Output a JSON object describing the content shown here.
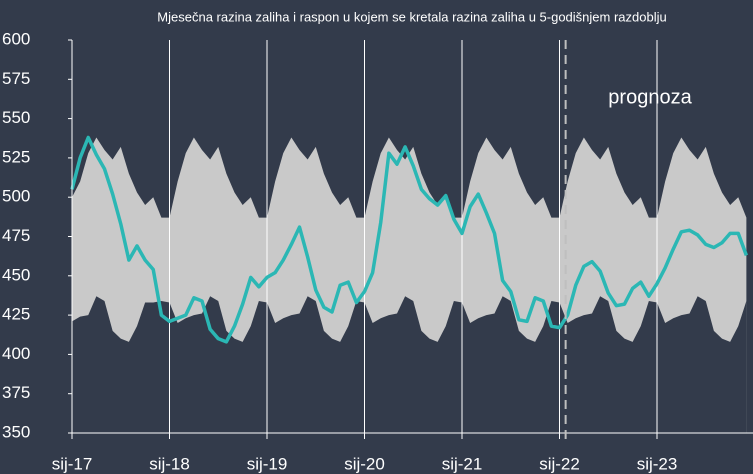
{
  "chart_data": {
    "type": "line_band",
    "title": "Mjesečna razina zaliha i raspon u kojem se kretala  razina zaliha u 5-godišnjem razdoblju",
    "categories": [
      "sij-17",
      null,
      null,
      null,
      null,
      null,
      null,
      null,
      null,
      null,
      null,
      null,
      "sij-18",
      null,
      null,
      null,
      null,
      null,
      null,
      null,
      null,
      null,
      null,
      null,
      "sij-19",
      null,
      null,
      null,
      null,
      null,
      null,
      null,
      null,
      null,
      null,
      null,
      "sij-20",
      null,
      null,
      null,
      null,
      null,
      null,
      null,
      null,
      null,
      null,
      null,
      "sij-21",
      null,
      null,
      null,
      null,
      null,
      null,
      null,
      null,
      null,
      null,
      null,
      "sij-22",
      null,
      null,
      null,
      null,
      null,
      null,
      null,
      null,
      null,
      null,
      null,
      "sij-23",
      null,
      null,
      null,
      null,
      null,
      null,
      null,
      null,
      null,
      null,
      null
    ],
    "band": {
      "color": "#c9c9c9",
      "max": [
        500,
        510,
        528,
        538,
        530,
        524,
        532,
        515,
        503,
        495,
        500,
        487,
        487,
        510,
        528,
        538,
        530,
        524,
        532,
        515,
        503,
        495,
        500,
        487,
        487,
        510,
        528,
        538,
        530,
        524,
        532,
        515,
        503,
        495,
        500,
        487,
        487,
        510,
        528,
        538,
        530,
        524,
        532,
        515,
        503,
        495,
        500,
        487,
        487,
        510,
        528,
        538,
        530,
        524,
        532,
        515,
        503,
        495,
        500,
        487,
        487,
        510,
        528,
        538,
        530,
        524,
        532,
        515,
        503,
        495,
        500,
        487,
        487,
        510,
        528,
        538,
        530,
        524,
        532,
        515,
        503,
        495,
        500,
        487
      ],
      "min": [
        421,
        424,
        425,
        437,
        434,
        415,
        410,
        408,
        418,
        433,
        433,
        434,
        433,
        420,
        423,
        425,
        426,
        437,
        434,
        415,
        410,
        408,
        418,
        434,
        433,
        420,
        423,
        425,
        426,
        437,
        434,
        415,
        410,
        408,
        418,
        434,
        433,
        420,
        423,
        425,
        426,
        437,
        434,
        415,
        410,
        408,
        418,
        434,
        433,
        420,
        423,
        425,
        426,
        437,
        434,
        415,
        410,
        408,
        418,
        434,
        433,
        420,
        423,
        425,
        426,
        437,
        434,
        415,
        410,
        408,
        418,
        434,
        433,
        420,
        423,
        425,
        426,
        437,
        434,
        415,
        410,
        408,
        418,
        434
      ]
    },
    "series": [
      {
        "color": "#2bb7b4",
        "values": [
          505,
          525,
          538,
          527,
          518,
          502,
          483,
          460,
          469,
          460,
          454,
          425,
          421,
          423,
          425,
          436,
          434,
          416,
          410,
          408,
          418,
          432,
          449,
          443,
          449,
          452,
          460,
          470,
          481,
          462,
          441,
          430,
          427,
          444,
          446,
          433,
          440,
          452,
          484,
          528,
          521,
          532,
          520,
          505,
          499,
          495,
          501,
          486,
          477,
          494,
          502,
          490,
          477,
          447,
          440,
          422,
          421,
          436,
          434,
          418,
          417,
          425,
          444,
          456,
          459,
          453,
          439,
          431,
          432,
          442,
          446,
          437,
          445,
          455,
          467,
          478,
          479,
          476,
          470,
          468,
          471,
          477,
          477,
          463
        ]
      }
    ],
    "annotations": [
      {
        "text": "prognoza"
      }
    ],
    "ylim": [
      350,
      600
    ],
    "yticks": [
      350,
      375,
      400,
      425,
      450,
      475,
      500,
      525,
      550,
      575,
      600
    ]
  }
}
